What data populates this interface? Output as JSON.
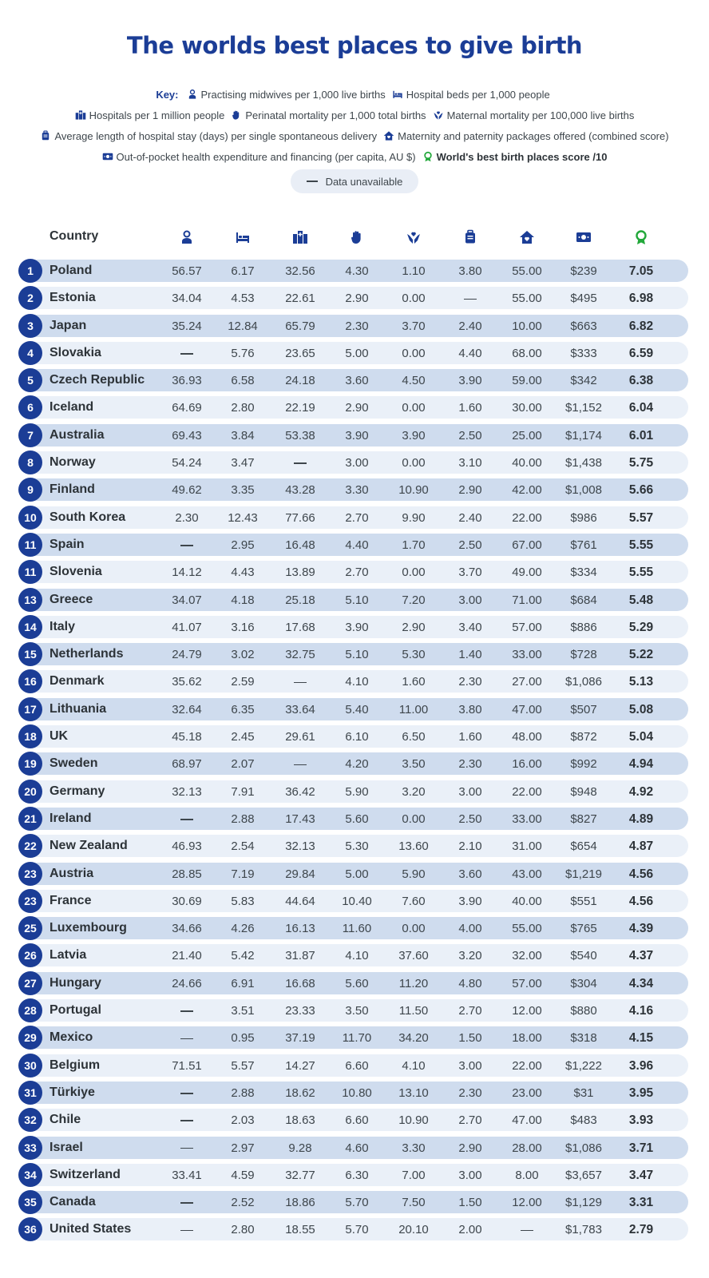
{
  "title": "The worlds best places to give birth",
  "key": {
    "label": "Key:",
    "items": [
      {
        "icon": "midwife-icon",
        "text": "Practising midwives per 1,000 live births"
      },
      {
        "icon": "bed-icon",
        "text": "Hospital beds per 1,000 people"
      },
      {
        "icon": "hospital-icon",
        "text": "Hospitals per 1 million people"
      },
      {
        "icon": "hand-icon",
        "text": "Perinatal mortality per 1,000 total births"
      },
      {
        "icon": "heart-hands-icon",
        "text": "Maternal mortality per 100,000 live births"
      },
      {
        "icon": "luggage-icon",
        "text": "Average length of hospital stay (days) per single spontaneous delivery"
      },
      {
        "icon": "house-heart-icon",
        "text": "Maternity and paternity packages offered (combined score)"
      },
      {
        "icon": "money-icon",
        "text": "Out-of-pocket health expenditure and financing (per capita, AU $)"
      },
      {
        "icon": "award-icon",
        "text": "World's best birth places score /10"
      }
    ],
    "unavailable": "Data unavailable"
  },
  "colors": {
    "brand": "#1b3d96",
    "band_dark": "#cfdcee",
    "band_light": "#eaf0f8",
    "award": "#22a83a"
  },
  "chart_data": {
    "type": "table",
    "title": "The worlds best places to give birth",
    "columns": [
      "Country",
      "Practising midwives per 1,000 live births",
      "Hospital beds per 1,000 people",
      "Hospitals per 1 million people",
      "Perinatal mortality per 1,000 total births",
      "Maternal mortality per 100,000 live births",
      "Average length of hospital stay (days) per single spontaneous delivery",
      "Maternity and paternity packages offered (combined score)",
      "Out-of-pocket health expenditure and financing (per capita, AU $)",
      "World's best birth places score /10"
    ],
    "header_country": "Country",
    "rows": [
      {
        "rank": "1",
        "country": "Poland",
        "values": [
          "56.57",
          "6.17",
          "32.56",
          "4.30",
          "1.10",
          "3.80",
          "55.00",
          "$239",
          "7.05"
        ]
      },
      {
        "rank": "2",
        "country": "Estonia",
        "values": [
          "34.04",
          "4.53",
          "22.61",
          "2.90",
          "0.00",
          null,
          "55.00",
          "$495",
          "6.98"
        ]
      },
      {
        "rank": "3",
        "country": "Japan",
        "values": [
          "35.24",
          "12.84",
          "65.79",
          "2.30",
          "3.70",
          "2.40",
          "10.00",
          "$663",
          "6.82"
        ]
      },
      {
        "rank": "4",
        "country": "Slovakia",
        "values": [
          null,
          "5.76",
          "23.65",
          "5.00",
          "0.00",
          "4.40",
          "68.00",
          "$333",
          "6.59"
        ]
      },
      {
        "rank": "5",
        "country": "Czech Republic",
        "values": [
          "36.93",
          "6.58",
          "24.18",
          "3.60",
          "4.50",
          "3.90",
          "59.00",
          "$342",
          "6.38"
        ]
      },
      {
        "rank": "6",
        "country": "Iceland",
        "values": [
          "64.69",
          "2.80",
          "22.19",
          "2.90",
          "0.00",
          "1.60",
          "30.00",
          "$1,152",
          "6.04"
        ]
      },
      {
        "rank": "7",
        "country": "Australia",
        "values": [
          "69.43",
          "3.84",
          "53.38",
          "3.90",
          "3.90",
          "2.50",
          "25.00",
          "$1,174",
          "6.01"
        ]
      },
      {
        "rank": "8",
        "country": "Norway",
        "values": [
          "54.24",
          "3.47",
          null,
          "3.00",
          "0.00",
          "3.10",
          "40.00",
          "$1,438",
          "5.75"
        ]
      },
      {
        "rank": "9",
        "country": "Finland",
        "values": [
          "49.62",
          "3.35",
          "43.28",
          "3.30",
          "10.90",
          "2.90",
          "42.00",
          "$1,008",
          "5.66"
        ]
      },
      {
        "rank": "10",
        "country": "South Korea",
        "values": [
          "2.30",
          "12.43",
          "77.66",
          "2.70",
          "9.90",
          "2.40",
          "22.00",
          "$986",
          "5.57"
        ]
      },
      {
        "rank": "11",
        "country": "Spain",
        "values": [
          null,
          "2.95",
          "16.48",
          "4.40",
          "1.70",
          "2.50",
          "67.00",
          "$761",
          "5.55"
        ]
      },
      {
        "rank": "11",
        "country": "Slovenia",
        "values": [
          "14.12",
          "4.43",
          "13.89",
          "2.70",
          "0.00",
          "3.70",
          "49.00",
          "$334",
          "5.55"
        ]
      },
      {
        "rank": "13",
        "country": "Greece",
        "values": [
          "34.07",
          "4.18",
          "25.18",
          "5.10",
          "7.20",
          "3.00",
          "71.00",
          "$684",
          "5.48"
        ]
      },
      {
        "rank": "14",
        "country": "Italy",
        "values": [
          "41.07",
          "3.16",
          "17.68",
          "3.90",
          "2.90",
          "3.40",
          "57.00",
          "$886",
          "5.29"
        ]
      },
      {
        "rank": "15",
        "country": "Netherlands",
        "values": [
          "24.79",
          "3.02",
          "32.75",
          "5.10",
          "5.30",
          "1.40",
          "33.00",
          "$728",
          "5.22"
        ]
      },
      {
        "rank": "16",
        "country": "Denmark",
        "values": [
          "35.62",
          "2.59",
          null,
          "4.10",
          "1.60",
          "2.30",
          "27.00",
          "$1,086",
          "5.13"
        ]
      },
      {
        "rank": "17",
        "country": "Lithuania",
        "values": [
          "32.64",
          "6.35",
          "33.64",
          "5.40",
          "11.00",
          "3.80",
          "47.00",
          "$507",
          "5.08"
        ]
      },
      {
        "rank": "18",
        "country": "UK",
        "values": [
          "45.18",
          "2.45",
          "29.61",
          "6.10",
          "6.50",
          "1.60",
          "48.00",
          "$872",
          "5.04"
        ]
      },
      {
        "rank": "19",
        "country": "Sweden",
        "values": [
          "68.97",
          "2.07",
          null,
          "4.20",
          "3.50",
          "2.30",
          "16.00",
          "$992",
          "4.94"
        ]
      },
      {
        "rank": "20",
        "country": "Germany",
        "values": [
          "32.13",
          "7.91",
          "36.42",
          "5.90",
          "3.20",
          "3.00",
          "22.00",
          "$948",
          "4.92"
        ]
      },
      {
        "rank": "21",
        "country": "Ireland",
        "values": [
          null,
          "2.88",
          "17.43",
          "5.60",
          "0.00",
          "2.50",
          "33.00",
          "$827",
          "4.89"
        ]
      },
      {
        "rank": "22",
        "country": "New Zealand",
        "values": [
          "46.93",
          "2.54",
          "32.13",
          "5.30",
          "13.60",
          "2.10",
          "31.00",
          "$654",
          "4.87"
        ]
      },
      {
        "rank": "23",
        "country": "Austria",
        "values": [
          "28.85",
          "7.19",
          "29.84",
          "5.00",
          "5.90",
          "3.60",
          "43.00",
          "$1,219",
          "4.56"
        ]
      },
      {
        "rank": "23",
        "country": "France",
        "values": [
          "30.69",
          "5.83",
          "44.64",
          "10.40",
          "7.60",
          "3.90",
          "40.00",
          "$551",
          "4.56"
        ]
      },
      {
        "rank": "25",
        "country": "Luxembourg",
        "values": [
          "34.66",
          "4.26",
          "16.13",
          "11.60",
          "0.00",
          "4.00",
          "55.00",
          "$765",
          "4.39"
        ]
      },
      {
        "rank": "26",
        "country": "Latvia",
        "values": [
          "21.40",
          "5.42",
          "31.87",
          "4.10",
          "37.60",
          "3.20",
          "32.00",
          "$540",
          "4.37"
        ]
      },
      {
        "rank": "27",
        "country": "Hungary",
        "values": [
          "24.66",
          "6.91",
          "16.68",
          "5.60",
          "11.20",
          "4.80",
          "57.00",
          "$304",
          "4.34"
        ]
      },
      {
        "rank": "28",
        "country": "Portugal",
        "values": [
          null,
          "3.51",
          "23.33",
          "3.50",
          "11.50",
          "2.70",
          "12.00",
          "$880",
          "4.16"
        ]
      },
      {
        "rank": "29",
        "country": "Mexico",
        "values": [
          null,
          "0.95",
          "37.19",
          "11.70",
          "34.20",
          "1.50",
          "18.00",
          "$318",
          "4.15"
        ]
      },
      {
        "rank": "30",
        "country": "Belgium",
        "values": [
          "71.51",
          "5.57",
          "14.27",
          "6.60",
          "4.10",
          "3.00",
          "22.00",
          "$1,222",
          "3.96"
        ]
      },
      {
        "rank": "31",
        "country": "Türkiye",
        "values": [
          null,
          "2.88",
          "18.62",
          "10.80",
          "13.10",
          "2.30",
          "23.00",
          "$31",
          "3.95"
        ]
      },
      {
        "rank": "32",
        "country": "Chile",
        "values": [
          null,
          "2.03",
          "18.63",
          "6.60",
          "10.90",
          "2.70",
          "47.00",
          "$483",
          "3.93"
        ]
      },
      {
        "rank": "33",
        "country": "Israel",
        "values": [
          null,
          "2.97",
          "9.28",
          "4.60",
          "3.30",
          "2.90",
          "28.00",
          "$1,086",
          "3.71"
        ]
      },
      {
        "rank": "34",
        "country": "Switzerland",
        "values": [
          "33.41",
          "4.59",
          "32.77",
          "6.30",
          "7.00",
          "3.00",
          "8.00",
          "$3,657",
          "3.47"
        ]
      },
      {
        "rank": "35",
        "country": "Canada",
        "values": [
          null,
          "2.52",
          "18.86",
          "5.70",
          "7.50",
          "1.50",
          "12.00",
          "$1,129",
          "3.31"
        ]
      },
      {
        "rank": "36",
        "country": "United States",
        "values": [
          null,
          "2.80",
          "18.55",
          "5.70",
          "20.10",
          "2.00",
          null,
          "$1,783",
          "2.79"
        ]
      }
    ]
  }
}
